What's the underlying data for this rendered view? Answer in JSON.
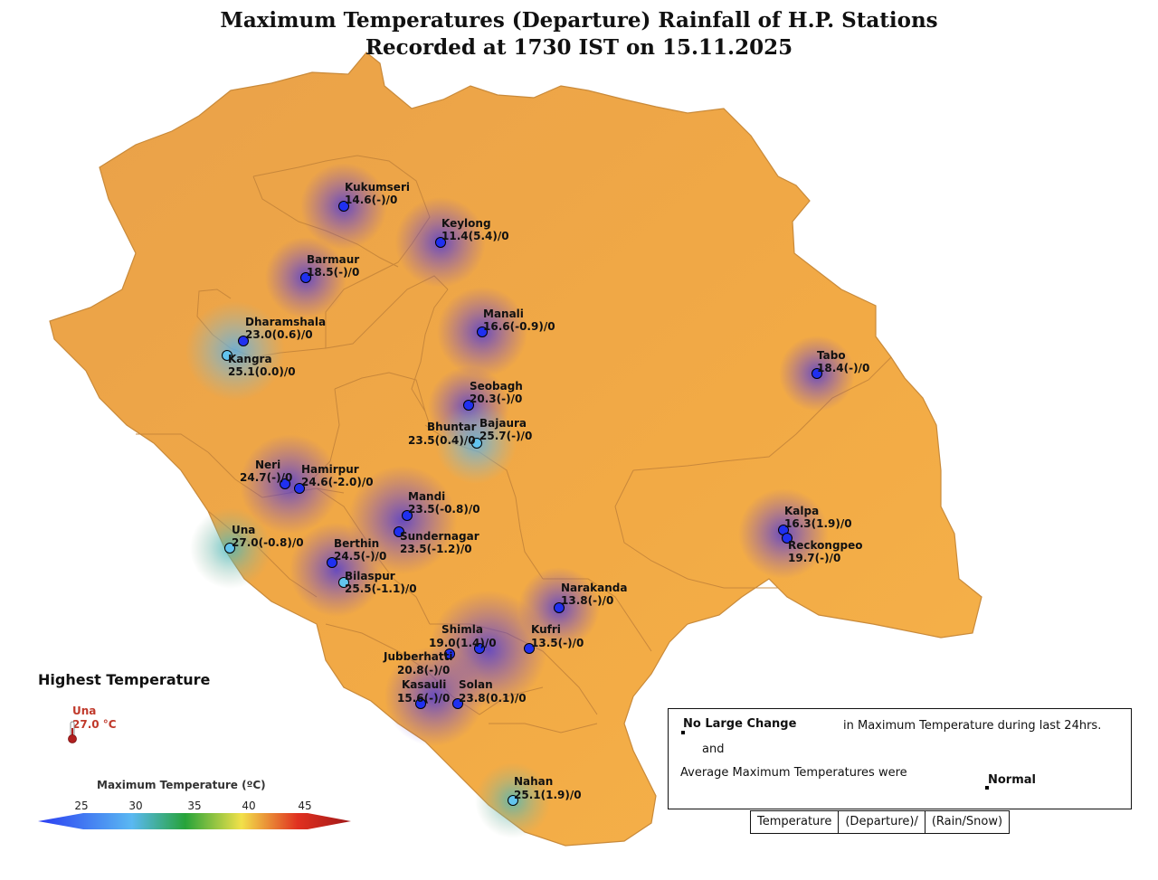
{
  "title_line1": "Maximum Temperatures (Departure) Rainfall of H.P. Stations",
  "title_line2": "Recorded at 1730 IST on 15.11.2025",
  "colors": {
    "map_fill": "#f0a743",
    "blue_dot": "#2030f0",
    "light_dot": "#62c4ee"
  },
  "stations": [
    {
      "name": "Kukumseri",
      "value": "14.6(-)/0"
    },
    {
      "name": "Keylong",
      "value": "11.4(5.4)/0"
    },
    {
      "name": "Barmaur",
      "value": "18.5(-)/0"
    },
    {
      "name": "Dharamshala",
      "value": "23.0(0.6)/0"
    },
    {
      "name": "Kangra",
      "value": "25.1(0.0)/0"
    },
    {
      "name": "Manali",
      "value": "16.6(-0.9)/0"
    },
    {
      "name": "Tabo",
      "value": "18.4(-)/0"
    },
    {
      "name": "Seobagh",
      "value": "20.3(-)/0"
    },
    {
      "name": "Bajaura",
      "value": "25.7(-)/0"
    },
    {
      "name": "Bhuntar",
      "value": "23.5(0.4)/0"
    },
    {
      "name": "Neri",
      "value": "24.7(-)/0"
    },
    {
      "name": "Hamirpur",
      "value": "24.6(-2.0)/0"
    },
    {
      "name": "Mandi",
      "value": "23.5(-0.8)/0"
    },
    {
      "name": "Sundernagar",
      "value": "23.5(-1.2)/0"
    },
    {
      "name": "Kalpa",
      "value": "16.3(1.9)/0"
    },
    {
      "name": "Reckongpeo",
      "value": "19.7(-)/0"
    },
    {
      "name": "Una",
      "value": "27.0(-0.8)/0"
    },
    {
      "name": "Berthin",
      "value": "24.5(-)/0"
    },
    {
      "name": "Bilaspur",
      "value": "25.5(-1.1)/0"
    },
    {
      "name": "Narakanda",
      "value": "13.8(-)/0"
    },
    {
      "name": "Shimla",
      "value": "19.0(1.4)/0"
    },
    {
      "name": "Kufri",
      "value": "13.5(-)/0"
    },
    {
      "name": "Jubberhatti",
      "value": "20.8(-)/0"
    },
    {
      "name": "Kasauli",
      "value": "15.6(-)/0"
    },
    {
      "name": "Solan",
      "value": "23.8(0.1)/0"
    },
    {
      "name": "Nahan",
      "value": "25.1(1.9)/0"
    }
  ],
  "highest": {
    "heading": "Highest Temperature",
    "station": "Una",
    "value": "27.0 °C",
    "icon": "thermometer-icon"
  },
  "legend": {
    "title": "Maximum Temperature (ºC)",
    "ticks": [
      "25",
      "30",
      "35",
      "40",
      "45"
    ],
    "colors": [
      "#2a3cf2",
      "#5ab8f2",
      "#27a33a",
      "#f2e14a",
      "#e03020",
      "#a01818"
    ]
  },
  "info": {
    "change_label": "No Large Change",
    "change_text": "in Maximum Temperature during last 24hrs.",
    "and": "and",
    "avg_text": "Average Maximum Temperatures were",
    "avg_label": "Normal"
  },
  "key": [
    "Temperature",
    "(Departure)/",
    "(Rain/Snow)"
  ]
}
